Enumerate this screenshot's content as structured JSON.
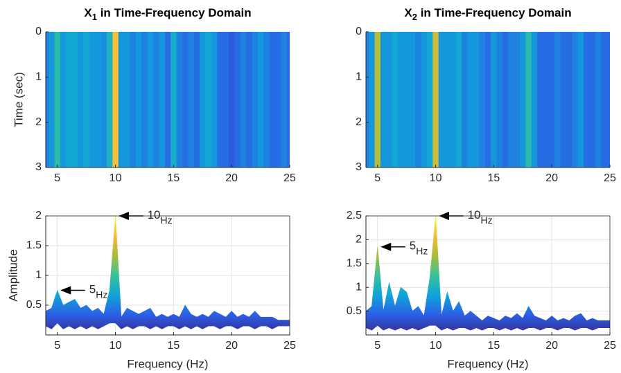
{
  "chart_data": [
    {
      "type": "heatmap",
      "title": {
        "main": "X",
        "sub": "1",
        "rest": " in Time-Frequency Domain"
      },
      "ylabel": "Time (sec)",
      "xlim": [
        4,
        25
      ],
      "xticks": [
        5,
        10,
        15,
        20,
        25
      ],
      "ylim": [
        0,
        3
      ],
      "yticks": [
        0,
        1,
        2,
        3
      ],
      "y_reversed": true,
      "grid": false,
      "x": [
        4,
        4.5,
        5,
        5.5,
        6,
        6.5,
        7,
        7.5,
        8,
        8.5,
        9,
        9.5,
        10,
        10.5,
        11,
        11.5,
        12,
        12.5,
        13,
        13.5,
        14,
        14.5,
        15,
        15.5,
        16,
        16.5,
        17,
        17.5,
        18,
        18.5,
        19,
        19.5,
        20,
        20.5,
        21,
        21.5,
        22,
        22.5,
        23,
        23.5,
        24,
        24.5,
        25
      ],
      "values": [
        0.25,
        0.3,
        0.45,
        0.3,
        0.35,
        0.35,
        0.3,
        0.35,
        0.3,
        0.3,
        0.28,
        0.4,
        0.85,
        0.3,
        0.3,
        0.25,
        0.3,
        0.25,
        0.3,
        0.25,
        0.3,
        0.2,
        0.38,
        0.25,
        0.2,
        0.25,
        0.2,
        0.3,
        0.35,
        0.3,
        0.2,
        0.2,
        0.15,
        0.2,
        0.25,
        0.2,
        0.25,
        0.3,
        0.25,
        0.2,
        0.2,
        0.25,
        0.2
      ]
    },
    {
      "type": "heatmap",
      "title": {
        "main": "X",
        "sub": "2",
        "rest": " in Time-Frequency Domain"
      },
      "xlim": [
        4,
        25
      ],
      "xticks": [
        5,
        10,
        15,
        20,
        25
      ],
      "ylim": [
        0,
        3
      ],
      "yticks": [
        0,
        1,
        2,
        3
      ],
      "y_reversed": true,
      "grid": false,
      "x": [
        4,
        4.5,
        5,
        5.5,
        6,
        6.5,
        7,
        7.5,
        8,
        8.5,
        9,
        9.5,
        10,
        10.5,
        11,
        11.5,
        12,
        12.5,
        13,
        13.5,
        14,
        14.5,
        15,
        15.5,
        16,
        16.5,
        17,
        17.5,
        18,
        18.5,
        19,
        19.5,
        20,
        20.5,
        21,
        21.5,
        22,
        22.5,
        23,
        23.5,
        24,
        24.5,
        25
      ],
      "values": [
        0.25,
        0.3,
        0.7,
        0.3,
        0.3,
        0.35,
        0.3,
        0.3,
        0.3,
        0.25,
        0.3,
        0.35,
        0.75,
        0.3,
        0.3,
        0.3,
        0.35,
        0.25,
        0.3,
        0.3,
        0.25,
        0.2,
        0.3,
        0.25,
        0.2,
        0.25,
        0.25,
        0.3,
        0.45,
        0.3,
        0.2,
        0.2,
        0.2,
        0.25,
        0.2,
        0.2,
        0.25,
        0.3,
        0.2,
        0.2,
        0.25,
        0.2,
        0.2
      ]
    },
    {
      "type": "area",
      "xlabel": "Frequency (Hz)",
      "ylabel": "Amplitude",
      "xlim": [
        4,
        25
      ],
      "xticks": [
        5,
        10,
        15,
        20,
        25
      ],
      "ylim": [
        0,
        2
      ],
      "yticks": [
        0.5,
        1,
        1.5,
        2
      ],
      "grid": true,
      "colormap": [
        "#352a87",
        "#2c5ee6",
        "#0fa5d9",
        "#38c29b",
        "#a8bd3a",
        "#f8ba3d",
        "#f9fb0e"
      ],
      "x": [
        4,
        4.5,
        5,
        5.5,
        6,
        6.5,
        7,
        7.5,
        8,
        8.5,
        9,
        9.5,
        10,
        10.5,
        11,
        11.5,
        12,
        12.5,
        13,
        13.5,
        14,
        14.5,
        15,
        15.5,
        16,
        16.5,
        17,
        17.5,
        18,
        18.5,
        19,
        19.5,
        20,
        20.5,
        21,
        21.5,
        22,
        22.5,
        23,
        23.5,
        24,
        24.5,
        25
      ],
      "values": [
        0.4,
        0.45,
        0.75,
        0.5,
        0.55,
        0.6,
        0.45,
        0.5,
        0.4,
        0.45,
        0.35,
        0.75,
        2.0,
        0.3,
        0.45,
        0.4,
        0.35,
        0.4,
        0.45,
        0.3,
        0.35,
        0.3,
        0.35,
        0.3,
        0.5,
        0.35,
        0.3,
        0.35,
        0.3,
        0.4,
        0.35,
        0.3,
        0.4,
        0.3,
        0.35,
        0.3,
        0.4,
        0.3,
        0.3,
        0.3,
        0.25,
        0.25,
        0.25
      ],
      "lower": [
        0.15,
        0.1,
        0.2,
        0.1,
        0.15,
        0.1,
        0.15,
        0.1,
        0.15,
        0.1,
        0.15,
        0.2,
        0.2,
        0.1,
        0.15,
        0.1,
        0.15,
        0.15,
        0.1,
        0.15,
        0.1,
        0.15,
        0.15,
        0.1,
        0.15,
        0.1,
        0.15,
        0.1,
        0.15,
        0.15,
        0.1,
        0.15,
        0.15,
        0.1,
        0.15,
        0.15,
        0.1,
        0.15,
        0.15,
        0.1,
        0.15,
        0.15,
        0.15
      ],
      "annotations": [
        {
          "label": "10",
          "sub": "Hz"
        },
        {
          "label": "5",
          "sub": "Hz"
        }
      ]
    },
    {
      "type": "area",
      "xlabel": "Frequency (Hz)",
      "xlim": [
        4,
        25
      ],
      "xticks": [
        5,
        10,
        15,
        20,
        25
      ],
      "ylim": [
        0,
        2.5
      ],
      "yticks": [
        0.5,
        1,
        1.5,
        2,
        2.5
      ],
      "grid": true,
      "colormap": [
        "#352a87",
        "#2c5ee6",
        "#0fa5d9",
        "#38c29b",
        "#a8bd3a",
        "#f8ba3d",
        "#f9fb0e"
      ],
      "x": [
        4,
        4.5,
        5,
        5.5,
        6,
        6.5,
        7,
        7.5,
        8,
        8.5,
        9,
        9.5,
        10,
        10.5,
        11,
        11.5,
        12,
        12.5,
        13,
        13.5,
        14,
        14.5,
        15,
        15.5,
        16,
        16.5,
        17,
        17.5,
        18,
        18.5,
        19,
        19.5,
        20,
        20.5,
        21,
        21.5,
        22,
        22.5,
        23,
        23.5,
        24,
        24.5,
        25
      ],
      "values": [
        0.5,
        0.6,
        1.85,
        0.5,
        1.1,
        0.6,
        1.0,
        0.9,
        0.5,
        0.6,
        0.4,
        1.2,
        2.5,
        0.4,
        0.9,
        0.5,
        0.7,
        0.4,
        0.5,
        0.4,
        0.3,
        0.4,
        0.35,
        0.3,
        0.4,
        0.35,
        0.45,
        0.35,
        0.6,
        0.4,
        0.35,
        0.3,
        0.4,
        0.3,
        0.35,
        0.3,
        0.4,
        0.45,
        0.3,
        0.35,
        0.3,
        0.3,
        0.3
      ],
      "lower": [
        0.15,
        0.1,
        0.2,
        0.1,
        0.15,
        0.1,
        0.15,
        0.1,
        0.15,
        0.1,
        0.15,
        0.2,
        0.2,
        0.1,
        0.15,
        0.1,
        0.15,
        0.15,
        0.1,
        0.15,
        0.1,
        0.15,
        0.15,
        0.1,
        0.15,
        0.1,
        0.15,
        0.1,
        0.15,
        0.15,
        0.1,
        0.15,
        0.15,
        0.1,
        0.15,
        0.15,
        0.1,
        0.15,
        0.15,
        0.1,
        0.15,
        0.15,
        0.15
      ],
      "annotations": [
        {
          "label": "10",
          "sub": "Hz"
        },
        {
          "label": "5",
          "sub": "Hz"
        }
      ]
    }
  ]
}
